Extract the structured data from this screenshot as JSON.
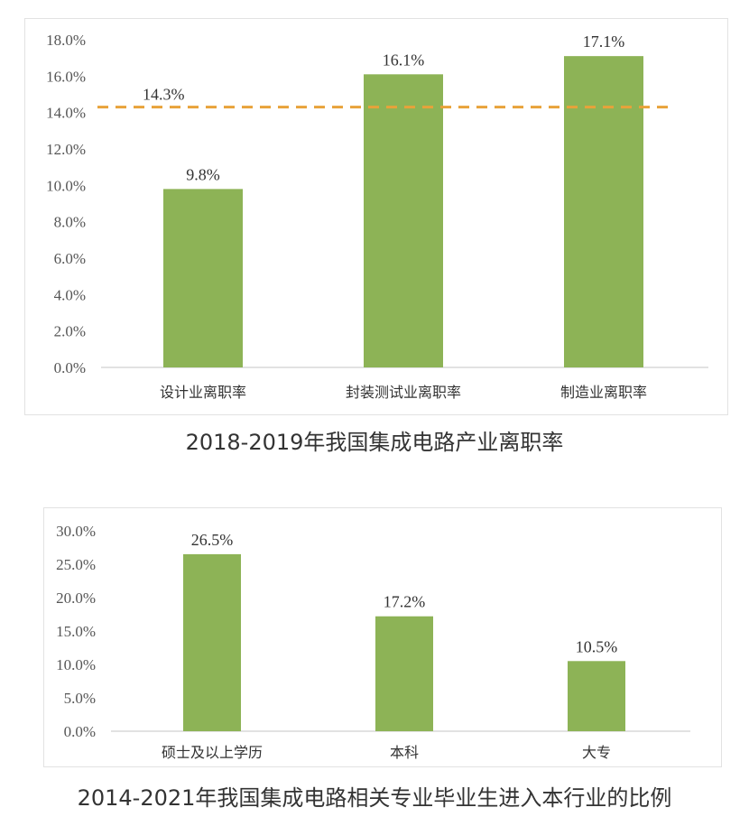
{
  "chart_data": [
    {
      "type": "bar",
      "title": "2018-2019年我国集成电路产业离职率",
      "categories": [
        "设计业离职率",
        "封装测试业离职率",
        "制造业离职率"
      ],
      "values": [
        9.8,
        16.1,
        17.1
      ],
      "value_labels": [
        "9.8%",
        "16.1%",
        "17.1%"
      ],
      "ylim": [
        0,
        18
      ],
      "yticks": [
        "0.0%",
        "2.0%",
        "4.0%",
        "6.0%",
        "8.0%",
        "10.0%",
        "12.0%",
        "14.0%",
        "16.0%",
        "18.0%"
      ],
      "reference_line": {
        "value": 14.3,
        "label": "14.3%",
        "style": "dashed",
        "color": "#E8A23A"
      },
      "bar_color": "#8DB356",
      "grid": false,
      "legend": "none"
    },
    {
      "type": "bar",
      "title": "2014-2021年我国集成电路相关专业毕业生进入本行业的比例",
      "categories": [
        "硕士及以上学历",
        "本科",
        "大专"
      ],
      "values": [
        26.5,
        17.2,
        10.5
      ],
      "value_labels": [
        "26.5%",
        "17.2%",
        "10.5%"
      ],
      "ylim": [
        0,
        30
      ],
      "yticks": [
        "0.0%",
        "5.0%",
        "10.0%",
        "15.0%",
        "20.0%",
        "25.0%",
        "30.0%"
      ],
      "bar_color": "#8DB356",
      "grid": false,
      "legend": "none"
    }
  ]
}
